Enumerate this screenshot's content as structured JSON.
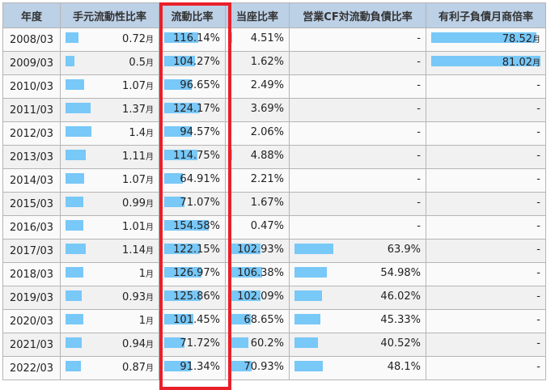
{
  "headers": [
    "年度",
    "手元流動性比率",
    "流動比率",
    "当座比率",
    "営業CF対流動負債比率",
    "有利子負債月商倍率"
  ],
  "bar_color": "#78c8f8",
  "highlight_color": "#e8202a",
  "rows": [
    {
      "year": "2008/03",
      "liquidity": "0.72",
      "current": "116.14%",
      "quick": "4.51%",
      "cf": "-",
      "debt": "78.52",
      "debt_unit": "月"
    },
    {
      "year": "2009/03",
      "liquidity": "0.5",
      "current": "104.27%",
      "quick": "1.62%",
      "cf": "-",
      "debt": "81.02",
      "debt_unit": "月"
    },
    {
      "year": "2010/03",
      "liquidity": "1.07",
      "current": "96.65%",
      "quick": "2.49%",
      "cf": "-",
      "debt": "-",
      "debt_unit": ""
    },
    {
      "year": "2011/03",
      "liquidity": "1.37",
      "current": "124.17%",
      "quick": "3.69%",
      "cf": "-",
      "debt": "-",
      "debt_unit": ""
    },
    {
      "year": "2012/03",
      "liquidity": "1.4",
      "current": "94.57%",
      "quick": "2.06%",
      "cf": "-",
      "debt": "-",
      "debt_unit": ""
    },
    {
      "year": "2013/03",
      "liquidity": "1.11",
      "current": "114.75%",
      "quick": "4.88%",
      "cf": "-",
      "debt": "-",
      "debt_unit": ""
    },
    {
      "year": "2014/03",
      "liquidity": "1.07",
      "current": "64.91%",
      "quick": "2.21%",
      "cf": "-",
      "debt": "-",
      "debt_unit": ""
    },
    {
      "year": "2015/03",
      "liquidity": "0.99",
      "current": "71.07%",
      "quick": "1.67%",
      "cf": "-",
      "debt": "-",
      "debt_unit": ""
    },
    {
      "year": "2016/03",
      "liquidity": "1.01",
      "current": "154.58%",
      "quick": "0.47%",
      "cf": "-",
      "debt": "-",
      "debt_unit": ""
    },
    {
      "year": "2017/03",
      "liquidity": "1.14",
      "current": "122.15%",
      "quick": "102.93%",
      "cf": "63.9%",
      "debt": "-",
      "debt_unit": ""
    },
    {
      "year": "2018/03",
      "liquidity": "1",
      "current": "126.97%",
      "quick": "106.38%",
      "cf": "54.98%",
      "debt": "-",
      "debt_unit": ""
    },
    {
      "year": "2019/03",
      "liquidity": "0.93",
      "current": "125.86%",
      "quick": "102.09%",
      "cf": "46.02%",
      "debt": "-",
      "debt_unit": ""
    },
    {
      "year": "2020/03",
      "liquidity": "1",
      "current": "101.45%",
      "quick": "68.65%",
      "cf": "45.33%",
      "debt": "-",
      "debt_unit": ""
    },
    {
      "year": "2021/03",
      "liquidity": "0.94",
      "current": "71.72%",
      "quick": "60.2%",
      "cf": "40.52%",
      "debt": "-",
      "debt_unit": ""
    },
    {
      "year": "2022/03",
      "liquidity": "0.87",
      "current": "91.34%",
      "quick": "70.93%",
      "cf": "48.1%",
      "debt": "-",
      "debt_unit": ""
    }
  ],
  "unit_month": "月",
  "bars": {
    "liquidity": [
      16,
      11,
      23,
      31,
      32,
      25,
      23,
      22,
      22,
      25,
      22,
      20,
      22,
      20,
      19
    ],
    "current": [
      42,
      38,
      34,
      44,
      34,
      41,
      23,
      25,
      55,
      44,
      46,
      45,
      36,
      25,
      33
    ],
    "quick": [
      2,
      1,
      1,
      1,
      1,
      2,
      1,
      1,
      0,
      37,
      39,
      37,
      25,
      22,
      26
    ],
    "cf": [
      0,
      0,
      0,
      0,
      0,
      0,
      0,
      0,
      0,
      48,
      40,
      34,
      32,
      29,
      35
    ],
    "debt": [
      130,
      135,
      0,
      0,
      0,
      0,
      0,
      0,
      0,
      0,
      0,
      0,
      0,
      0,
      0
    ]
  }
}
